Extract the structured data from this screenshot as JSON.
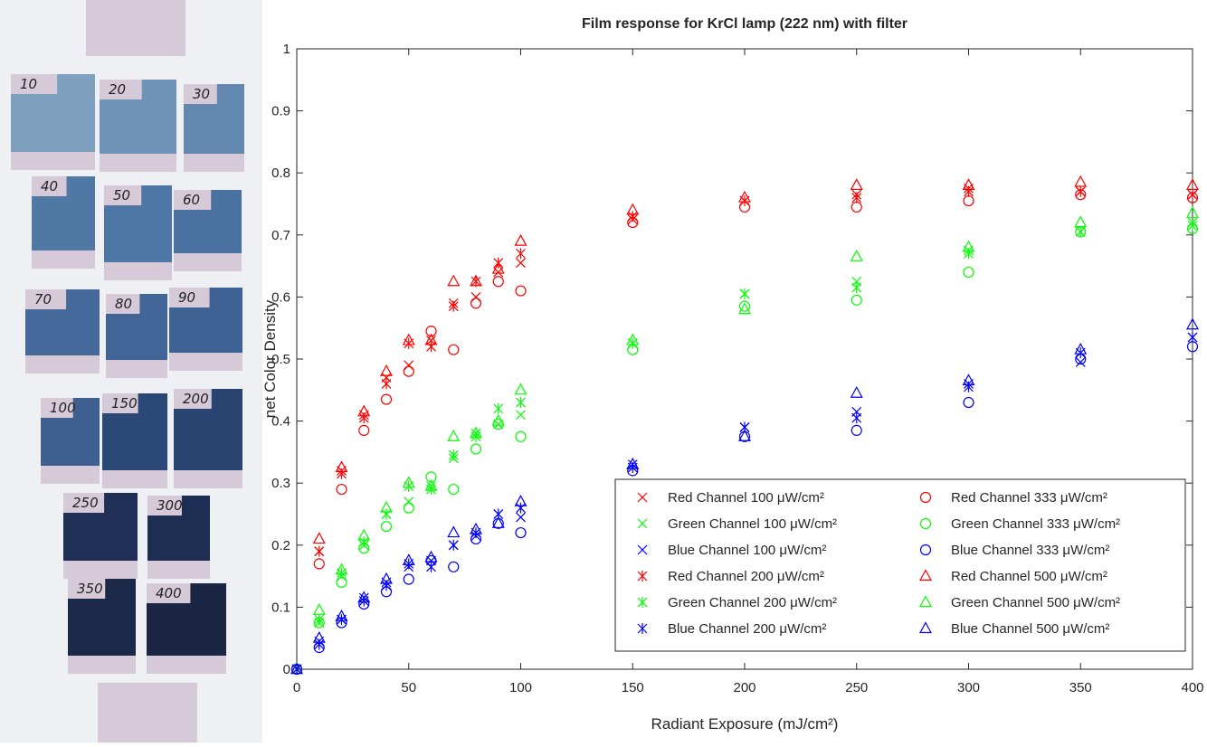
{
  "film_labels": [
    "10",
    "20",
    "30",
    "40",
    "50",
    "60",
    "70",
    "80",
    "90",
    "100",
    "150",
    "200",
    "250",
    "300",
    "350",
    "400"
  ],
  "chart_data": {
    "type": "scatter",
    "title": "Film response for KrCl lamp (222 nm) with filter",
    "xlabel": "Radiant Exposure (mJ/cm²)",
    "ylabel": "net Color Density",
    "x": [
      0,
      10,
      20,
      30,
      40,
      50,
      60,
      70,
      80,
      90,
      100,
      150,
      200,
      250,
      300,
      350,
      400
    ],
    "xlim": [
      0,
      400
    ],
    "xticks": [
      0,
      50,
      100,
      150,
      200,
      250,
      300,
      350,
      400
    ],
    "ylim": [
      0,
      1
    ],
    "yticks": [
      0,
      0.1,
      0.2,
      0.3,
      0.4,
      0.5,
      0.6,
      0.7,
      0.8,
      0.9,
      1
    ],
    "grid": false,
    "legend": "lower right",
    "legend_columns": 2,
    "series": [
      {
        "name": "Red Channel 100 μW/cm²",
        "color": "#ff0000",
        "marker": "x",
        "values": [
          0,
          0.19,
          0.32,
          0.41,
          0.47,
          0.49,
          0.53,
          0.59,
          0.6,
          0.64,
          0.655,
          0.725,
          0.755,
          0.765,
          0.775,
          0.77,
          0.765
        ]
      },
      {
        "name": "Green Channel 100 μW/cm²",
        "color": "#00ff00",
        "marker": "x",
        "values": [
          0,
          0.075,
          0.15,
          0.2,
          0.25,
          0.27,
          0.295,
          0.34,
          0.38,
          0.395,
          0.41,
          0.525,
          0.605,
          0.625,
          0.675,
          0.705,
          0.72
        ]
      },
      {
        "name": "Blue Channel 100 μW/cm²",
        "color": "#0000ff",
        "marker": "x",
        "values": [
          0,
          0.045,
          0.08,
          0.115,
          0.14,
          0.165,
          0.175,
          0.2,
          0.215,
          0.25,
          0.245,
          0.33,
          0.39,
          0.415,
          0.46,
          0.495,
          0.535
        ]
      },
      {
        "name": "Red Channel 200 μW/cm²",
        "color": "#ff0000",
        "marker": "*",
        "values": [
          0,
          0.19,
          0.315,
          0.405,
          0.46,
          0.525,
          0.52,
          0.585,
          0.625,
          0.655,
          0.67,
          0.73,
          0.755,
          0.76,
          0.77,
          0.77,
          0.765
        ]
      },
      {
        "name": "Green Channel 200 μW/cm²",
        "color": "#00ff00",
        "marker": "*",
        "values": [
          0,
          0.08,
          0.155,
          0.205,
          0.25,
          0.295,
          0.29,
          0.345,
          0.375,
          0.42,
          0.43,
          0.525,
          0.605,
          0.615,
          0.67,
          0.705,
          0.715
        ]
      },
      {
        "name": "Blue Channel 200 μW/cm²",
        "color": "#0000ff",
        "marker": "*",
        "values": [
          0,
          0.04,
          0.08,
          0.11,
          0.135,
          0.17,
          0.165,
          0.2,
          0.22,
          0.25,
          0.26,
          0.325,
          0.39,
          0.405,
          0.455,
          0.51,
          0.535
        ]
      },
      {
        "name": "Red Channel 333 μW/cm²",
        "color": "#ff0000",
        "marker": "o",
        "values": [
          0,
          0.17,
          0.29,
          0.385,
          0.435,
          0.48,
          0.545,
          0.515,
          0.59,
          0.625,
          0.61,
          0.72,
          0.745,
          0.745,
          0.755,
          0.765,
          0.76
        ]
      },
      {
        "name": "Green Channel 333 μW/cm²",
        "color": "#00ff00",
        "marker": "o",
        "values": [
          0,
          0.075,
          0.14,
          0.195,
          0.23,
          0.26,
          0.31,
          0.29,
          0.355,
          0.395,
          0.375,
          0.515,
          0.585,
          0.595,
          0.64,
          0.705,
          0.71
        ]
      },
      {
        "name": "Blue Channel 333 μW/cm²",
        "color": "#0000ff",
        "marker": "o",
        "values": [
          0,
          0.035,
          0.075,
          0.105,
          0.125,
          0.145,
          0.175,
          0.165,
          0.21,
          0.235,
          0.22,
          0.32,
          0.375,
          0.385,
          0.43,
          0.5,
          0.52
        ]
      },
      {
        "name": "Red Channel 500 μW/cm²",
        "color": "#ff0000",
        "marker": "^",
        "values": [
          0,
          0.21,
          0.325,
          0.415,
          0.48,
          0.53,
          0.53,
          0.625,
          0.625,
          0.645,
          0.69,
          0.74,
          0.76,
          0.78,
          0.78,
          0.785,
          0.78
        ]
      },
      {
        "name": "Green Channel 500 μW/cm²",
        "color": "#00ff00",
        "marker": "^",
        "values": [
          0,
          0.095,
          0.16,
          0.215,
          0.26,
          0.3,
          0.295,
          0.375,
          0.38,
          0.4,
          0.45,
          0.53,
          0.58,
          0.665,
          0.68,
          0.72,
          0.735
        ]
      },
      {
        "name": "Blue Channel 500 μW/cm²",
        "color": "#0000ff",
        "marker": "^",
        "values": [
          0,
          0.05,
          0.085,
          0.115,
          0.145,
          0.175,
          0.18,
          0.22,
          0.225,
          0.235,
          0.27,
          0.33,
          0.375,
          0.445,
          0.465,
          0.515,
          0.555
        ]
      }
    ]
  }
}
